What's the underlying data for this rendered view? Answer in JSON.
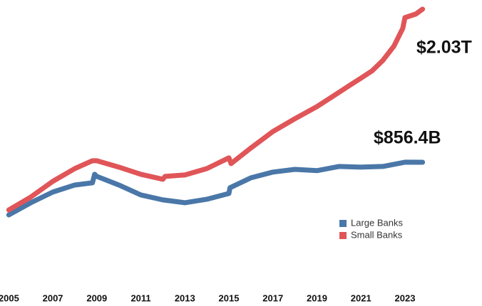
{
  "chart_data": {
    "type": "line",
    "xlim": [
      2004.6,
      2026.5
    ],
    "xticks": [
      2005,
      2007,
      2009,
      2011,
      2013,
      2015,
      2017,
      2019,
      2021,
      2023
    ],
    "ylim": [
      0,
      2100
    ],
    "legend": "lower right",
    "series": [
      {
        "name": "Large Banks",
        "color": "#4a77a8",
        "end_label": "$856.4B",
        "x": [
          2005,
          2006,
          2007,
          2008,
          2008.8,
          2008.9,
          2009,
          2010,
          2011,
          2012,
          2013,
          2014,
          2015,
          2015.05,
          2016,
          2017,
          2018,
          2019,
          2020,
          2021,
          2022,
          2023,
          2023.8
        ],
        "values": [
          453,
          546,
          628,
          682,
          699,
          764,
          748,
          682,
          606,
          568,
          546,
          573,
          617,
          661,
          737,
          781,
          802,
          792,
          824,
          819,
          824,
          857,
          856.4
        ]
      },
      {
        "name": "Small Banks",
        "color": "#e05558",
        "end_label": "$2.03T",
        "x": [
          2005,
          2006,
          2007,
          2008,
          2008.8,
          2009,
          2010,
          2011,
          2012,
          2012.1,
          2013,
          2014,
          2015,
          2015.1,
          2016,
          2017,
          2018,
          2019,
          2020,
          2020.5,
          2021,
          2021.5,
          2022,
          2022.5,
          2022.9,
          2023,
          2023.5,
          2023.8
        ],
        "values": [
          491,
          590,
          710,
          808,
          868,
          868,
          819,
          764,
          726,
          748,
          759,
          808,
          890,
          846,
          966,
          1092,
          1190,
          1283,
          1392,
          1447,
          1501,
          1556,
          1638,
          1747,
          1883,
          1965,
          1993,
          2030
        ]
      }
    ]
  }
}
